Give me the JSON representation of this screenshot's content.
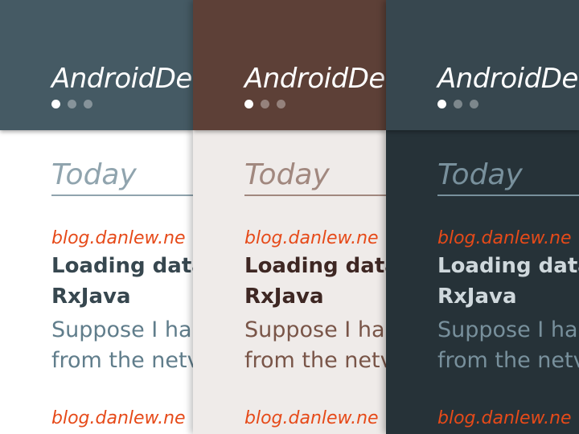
{
  "app": {
    "title": "AndroidDe",
    "pager": {
      "pages": 3,
      "active_index": 0
    }
  },
  "feed": {
    "section_header": "Today",
    "items": [
      {
        "source": "blog.danlew.ne",
        "title_lines": [
          "Loading data",
          "RxJava"
        ],
        "snippet_lines": [
          "Suppose I ha",
          "from the netv"
        ]
      },
      {
        "source": "blog.danlew.ne"
      }
    ]
  },
  "themes": [
    {
      "name": "Blue Grey",
      "header_color": "#455a64",
      "background_color": "#ffffff",
      "section_color": "#90a4ae",
      "source_color": "#e64a19",
      "title_color": "#37474f",
      "snippet_color": "#607d8b"
    },
    {
      "name": "Brown",
      "header_color": "#5d4037",
      "background_color": "#efebe9",
      "section_color": "#a1887f",
      "source_color": "#e64a19",
      "title_color": "#3e2723",
      "snippet_color": "#795548"
    },
    {
      "name": "Dark",
      "header_color": "#37474f",
      "background_color": "#263238",
      "section_color": "#78909c",
      "source_color": "#e64a19",
      "title_color": "#cfd8dc",
      "snippet_color": "#78909c"
    }
  ]
}
